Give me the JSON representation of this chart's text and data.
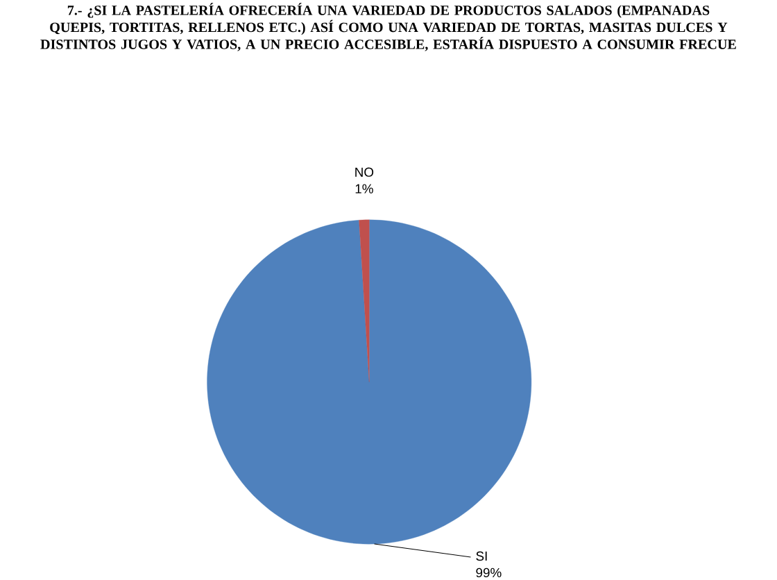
{
  "chart_data": {
    "type": "pie",
    "title": "7.- ¿SI LA PASTELERÍA OFRECERÍA UNA VARIEDAD DE PRODUCTOS SALADOS (EMPANADAS QUEPIS, TORTITAS, RELLENOS ETC.) ASÍ COMO UNA VARIEDAD DE TORTAS, MASITAS DULCES Y DISTINTOS JUGOS Y VATIOS, A UN PRECIO ACCESIBLE, ESTARÍA DISPUESTO A CONSUMIR FRECUE",
    "categories": [
      "SI",
      "NO"
    ],
    "values": [
      99,
      1
    ],
    "value_labels": [
      "99%",
      "1%"
    ],
    "colors": [
      "#4f81bd",
      "#c0504d"
    ]
  }
}
